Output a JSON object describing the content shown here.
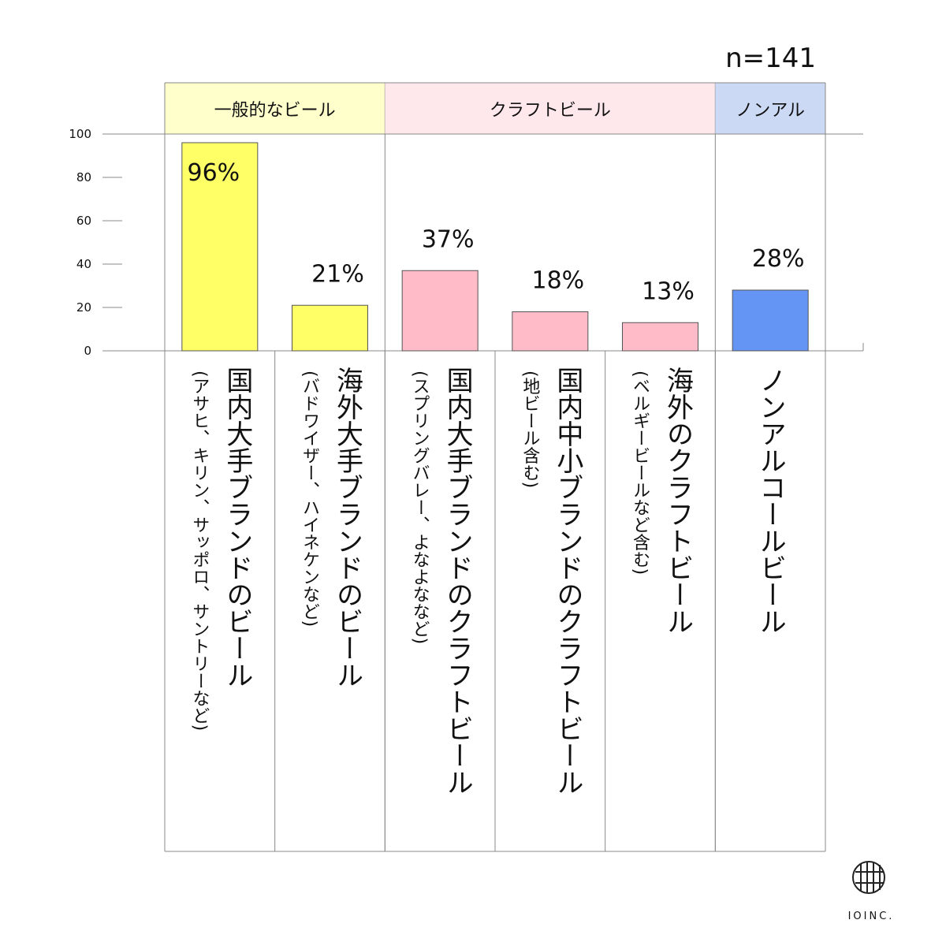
{
  "chart_data": {
    "type": "bar",
    "note": "n=141",
    "groups": [
      {
        "label": "一般的なビール",
        "color": "#ffffcc",
        "size": 2
      },
      {
        "label": "クラフトビール",
        "color": "#ffe8ec",
        "size": 3
      },
      {
        "label": "ノンアル",
        "color": "#ccd9f5",
        "size": 1
      }
    ],
    "categories": [
      "国内大手ブランドのビール",
      "海外大手ブランドのビール",
      "国内大手ブランドのクラフトビール",
      "国内中小ブランドのクラフトビール",
      "海外のクラフトビール",
      "ノンアルコールビール"
    ],
    "category_notes": [
      "(アサヒ、キリン、サッポロ、サントリーなど)",
      "(バドワイザー、ハイネケンなど)",
      "(スプリングバレー、よなよななど)",
      "(地ビール含む)",
      "(ベルギービールなど含む)",
      null
    ],
    "values": [
      96,
      21,
      37,
      18,
      13,
      28
    ],
    "value_labels": [
      "96%",
      "21%",
      "37%",
      "18%",
      "13%",
      "28%"
    ],
    "colors": [
      "#ffff66",
      "#ffff66",
      "#ffbcc8",
      "#ffbcc8",
      "#ffbcc8",
      "#6495f5"
    ],
    "ylim": [
      0,
      100
    ],
    "yticks": [
      0,
      20,
      40,
      60,
      80,
      100
    ],
    "logo": "IOINC."
  }
}
